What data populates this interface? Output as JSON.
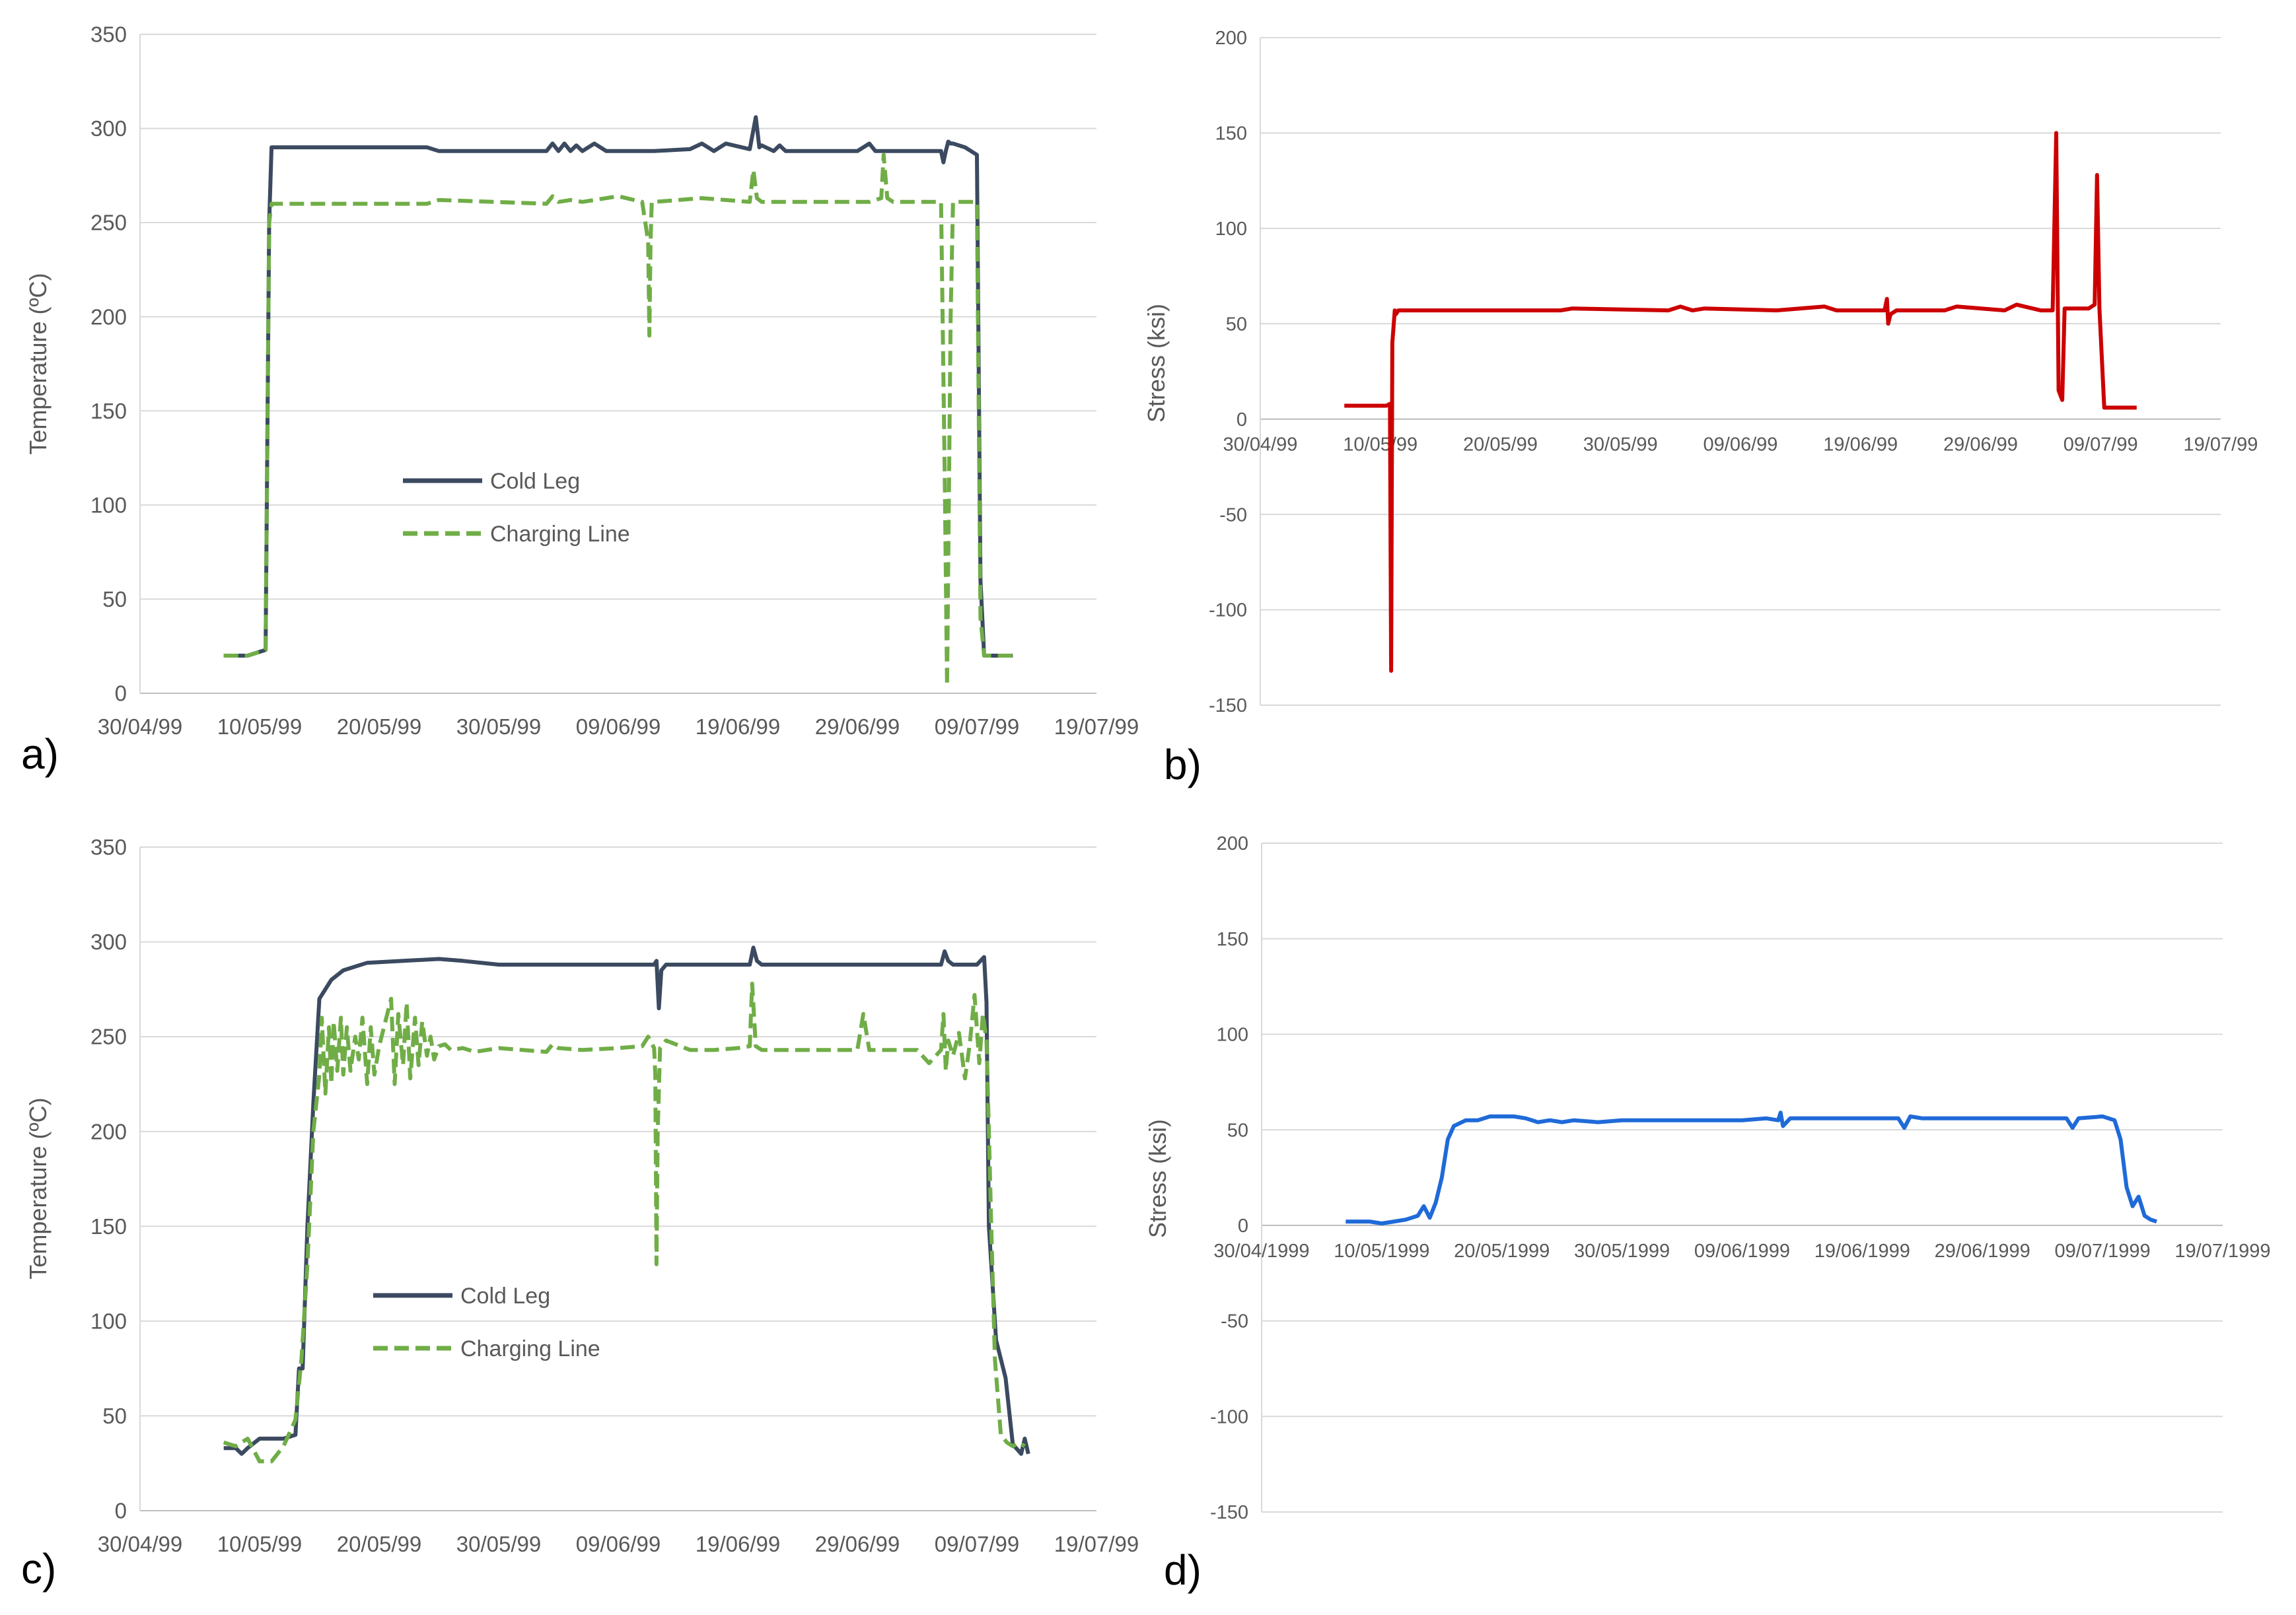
{
  "figure": {
    "background": "#ffffff",
    "gridline_color": "#d9d9d9",
    "text_color": "#595959"
  },
  "chart_data": [
    {
      "panel": "a)",
      "type": "line",
      "title": "",
      "xlabel": "",
      "ylabel": "Temperature (ºC)",
      "ylim": [
        0,
        350
      ],
      "yticks": [
        0,
        50,
        100,
        150,
        200,
        250,
        300,
        350
      ],
      "xlim": [
        0,
        80
      ],
      "xticks": [
        0,
        10,
        20,
        30,
        40,
        50,
        60,
        70,
        80
      ],
      "xtick_labels": [
        "30/04/99",
        "10/05/99",
        "20/05/99",
        "30/05/99",
        "09/06/99",
        "19/06/99",
        "29/06/99",
        "09/07/99",
        "19/07/99"
      ],
      "x_unit": "days since 30/04/99",
      "grid": true,
      "legend": "center-left",
      "series": [
        {
          "name": "Cold Leg",
          "color": "#3b4a60",
          "dash": "solid",
          "x": [
            7,
            9,
            10.5,
            10.8,
            11,
            24,
            25,
            34,
            34.5,
            35,
            35.5,
            36,
            36.5,
            37,
            38,
            39,
            43,
            46,
            47,
            48,
            49,
            51,
            51.5,
            51.8,
            52,
            53,
            53.5,
            54,
            55,
            56,
            60,
            61,
            61.5,
            62,
            64,
            66,
            67,
            67.2,
            67.4,
            67.6,
            67.8,
            68,
            69,
            70,
            70.3,
            70.6,
            71,
            73
          ],
          "values": [
            20,
            20,
            23,
            250,
            290,
            290,
            288,
            288,
            292,
            288,
            292,
            288,
            291,
            288,
            292,
            288,
            288,
            289,
            292,
            288,
            292,
            289,
            306,
            290,
            291,
            288,
            291,
            288,
            288,
            288,
            288,
            292,
            288,
            288,
            288,
            288,
            288,
            282,
            288,
            293,
            292,
            292,
            290,
            286,
            60,
            20,
            20,
            20
          ]
        },
        {
          "name": "Charging Line",
          "color": "#70ad47",
          "dash": "dashed",
          "x": [
            7,
            9,
            10.5,
            10.8,
            11,
            24,
            25,
            34,
            34.5,
            35,
            36,
            37,
            40,
            42,
            42.5,
            42.6,
            42.7,
            42.8,
            43,
            47,
            51,
            51.3,
            51.6,
            52,
            61,
            62,
            62.2,
            62.5,
            63,
            66,
            67,
            67.3,
            67.5,
            67.8,
            68,
            69,
            70,
            70.3,
            70.6,
            71,
            73
          ],
          "values": [
            20,
            20,
            23,
            250,
            260,
            260,
            262,
            260,
            264,
            261,
            262,
            261,
            264,
            261,
            240,
            190,
            240,
            261,
            261,
            263,
            261,
            278,
            263,
            261,
            261,
            263,
            286,
            263,
            261,
            261,
            261,
            120,
            4,
            200,
            261,
            261,
            261,
            40,
            20,
            20,
            20
          ]
        }
      ],
      "legend_labels": [
        "Cold Leg",
        "Charging Line"
      ]
    },
    {
      "panel": "b)",
      "type": "line",
      "title": "",
      "xlabel": "",
      "ylabel": "Stress (ksi)",
      "ylim": [
        -150,
        200
      ],
      "yticks": [
        -150,
        -100,
        -50,
        0,
        50,
        100,
        150,
        200
      ],
      "xlim": [
        0,
        80
      ],
      "xticks": [
        0,
        10,
        20,
        30,
        40,
        50,
        60,
        70,
        80
      ],
      "xtick_labels": [
        "30/04/99",
        "10/05/99",
        "20/05/99",
        "30/05/99",
        "09/06/99",
        "19/06/99",
        "29/06/99",
        "09/07/99",
        "19/07/99"
      ],
      "x_unit": "days since 30/04/99",
      "grid": true,
      "legend": "none",
      "series": [
        {
          "name": "Stress",
          "color": "#cc0000",
          "dash": "solid",
          "x": [
            7,
            10.5,
            10.8,
            10.9,
            11,
            11.2,
            11.3,
            11.5,
            25,
            26,
            34,
            35,
            36,
            37,
            43,
            47,
            48,
            52,
            52.2,
            52.3,
            52.5,
            53,
            57,
            58,
            62,
            63,
            65,
            66,
            66.3,
            66.5,
            66.8,
            67,
            69,
            69.5,
            69.7,
            69.9,
            70.3,
            70.6,
            73
          ],
          "values": [
            7,
            7,
            8,
            -132,
            40,
            57,
            55,
            57,
            57,
            58,
            57,
            59,
            57,
            58,
            57,
            59,
            57,
            57,
            63,
            50,
            55,
            57,
            57,
            59,
            57,
            60,
            57,
            57,
            150,
            15,
            10,
            58,
            58,
            60,
            128,
            58,
            6,
            6,
            6
          ]
        }
      ]
    },
    {
      "panel": "c)",
      "type": "line",
      "title": "",
      "xlabel": "",
      "ylabel": "Temperature (ºC)",
      "ylim": [
        0,
        350
      ],
      "yticks": [
        0,
        50,
        100,
        150,
        200,
        250,
        300,
        350
      ],
      "xlim": [
        0,
        80
      ],
      "xticks": [
        0,
        10,
        20,
        30,
        40,
        50,
        60,
        70,
        80
      ],
      "xtick_labels": [
        "30/04/99",
        "10/05/99",
        "20/05/99",
        "30/05/99",
        "09/06/99",
        "19/06/99",
        "29/06/99",
        "09/07/99",
        "19/07/99"
      ],
      "x_unit": "days since 30/04/99",
      "grid": true,
      "legend": "center-left",
      "series": [
        {
          "name": "Cold Leg",
          "color": "#3b4a60",
          "dash": "solid",
          "x": [
            7,
            8,
            8.5,
            9,
            10,
            11,
            12,
            13,
            13.3,
            13.6,
            14,
            14.5,
            15,
            16,
            17,
            19,
            22,
            25,
            27,
            30,
            35,
            40,
            42,
            43,
            43.2,
            43.4,
            43.6,
            44,
            50,
            51,
            51.3,
            51.6,
            52,
            60,
            67,
            67.3,
            67.6,
            68,
            70,
            70.6,
            70.8,
            71,
            71.6,
            72.4,
            73,
            73.7,
            74,
            74.3
          ],
          "values": [
            33,
            33,
            30,
            33,
            38,
            38,
            38,
            40,
            75,
            75,
            150,
            215,
            270,
            280,
            285,
            289,
            290,
            291,
            290,
            288,
            288,
            288,
            288,
            288,
            290,
            265,
            285,
            288,
            288,
            288,
            297,
            290,
            288,
            288,
            288,
            295,
            290,
            288,
            288,
            292,
            268,
            150,
            90,
            70,
            35,
            30,
            38,
            30
          ]
        },
        {
          "name": "Charging Line",
          "color": "#70ad47",
          "dash": "dashed",
          "x": [
            7,
            8,
            9,
            10,
            11,
            12,
            13,
            13.5,
            14,
            14.5,
            15,
            15.2,
            15.5,
            15.8,
            16,
            16.2,
            16.5,
            16.8,
            17,
            17.3,
            17.6,
            18,
            18.3,
            18.6,
            19,
            19.3,
            19.6,
            20,
            21,
            21.3,
            21.6,
            22,
            22.3,
            22.6,
            23,
            23.3,
            23.6,
            24,
            24.3,
            24.6,
            25,
            25.5,
            26,
            27,
            28,
            30,
            34,
            34.5,
            35,
            37,
            40,
            42,
            42.5,
            43,
            43.1,
            43.2,
            43.3,
            43.5,
            44,
            46,
            48,
            50,
            51,
            51.2,
            51.5,
            52,
            60,
            60.5,
            61,
            65,
            66,
            67,
            67.2,
            67.4,
            67.6,
            68,
            68.5,
            69,
            69.4,
            69.8,
            70.2,
            70.5,
            70.8,
            71,
            71.2,
            71.5,
            72,
            72.5,
            73,
            73.5,
            74
          ],
          "values": [
            36,
            34,
            38,
            26,
            26,
            34,
            48,
            80,
            130,
            200,
            230,
            260,
            220,
            255,
            225,
            258,
            232,
            260,
            230,
            255,
            232,
            250,
            238,
            260,
            225,
            255,
            230,
            245,
            270,
            225,
            262,
            235,
            268,
            228,
            260,
            235,
            258,
            240,
            250,
            238,
            245,
            246,
            243,
            244,
            242,
            244,
            242,
            246,
            244,
            243,
            244,
            245,
            250,
            244,
            230,
            130,
            200,
            244,
            248,
            243,
            243,
            244,
            245,
            278,
            245,
            243,
            243,
            262,
            243,
            243,
            236,
            243,
            262,
            232,
            248,
            240,
            252,
            228,
            246,
            272,
            236,
            262,
            248,
            200,
            150,
            80,
            40,
            36,
            34,
            36,
            34
          ]
        }
      ],
      "legend_labels": [
        "Cold Leg",
        "Charging Line"
      ]
    },
    {
      "panel": "d)",
      "type": "line",
      "title": "",
      "xlabel": "",
      "ylabel": "Stress (ksi)",
      "ylim": [
        -150,
        200
      ],
      "yticks": [
        -150,
        -100,
        -50,
        0,
        50,
        100,
        150,
        200
      ],
      "xlim": [
        0,
        80
      ],
      "xticks": [
        0,
        10,
        20,
        30,
        40,
        50,
        60,
        70,
        80
      ],
      "xtick_labels": [
        "30/04/1999",
        "10/05/1999",
        "20/05/1999",
        "30/05/1999",
        "09/06/1999",
        "19/06/1999",
        "29/06/1999",
        "09/07/1999",
        "19/07/1999"
      ],
      "x_unit": "days since 30/04/1999",
      "grid": true,
      "legend": "none",
      "series": [
        {
          "name": "Stress",
          "color": "#1f6ad8",
          "dash": "solid",
          "x": [
            7,
            9,
            10,
            11,
            12,
            13,
            13.5,
            14,
            14.5,
            15,
            15.5,
            16,
            17,
            18,
            19,
            20,
            21,
            22,
            23,
            24,
            25,
            26,
            28,
            30,
            34,
            38,
            40,
            42,
            43,
            43.2,
            43.4,
            44,
            48,
            52,
            53,
            53.5,
            54,
            55,
            60,
            65,
            67,
            67.5,
            68,
            70,
            71,
            71.5,
            72,
            72.5,
            73,
            73.5,
            74,
            74.5
          ],
          "values": [
            2,
            2,
            1,
            2,
            3,
            5,
            10,
            4,
            12,
            25,
            45,
            52,
            55,
            55,
            57,
            57,
            57,
            56,
            54,
            55,
            54,
            55,
            54,
            55,
            55,
            55,
            55,
            56,
            55,
            59,
            52,
            56,
            56,
            56,
            56,
            51,
            57,
            56,
            56,
            56,
            56,
            51,
            56,
            57,
            55,
            45,
            20,
            10,
            15,
            5,
            3,
            2
          ]
        }
      ]
    }
  ]
}
